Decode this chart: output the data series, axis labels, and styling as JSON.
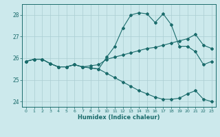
{
  "xlabel": "Humidex (Indice chaleur)",
  "bg_color": "#cce9ec",
  "grid_color": "#aacdd2",
  "line_color": "#1a6b6b",
  "x_data": [
    0,
    1,
    2,
    3,
    4,
    5,
    6,
    7,
    8,
    9,
    10,
    11,
    12,
    13,
    14,
    15,
    16,
    17,
    18,
    19,
    20,
    21,
    22,
    23
  ],
  "curve1": [
    25.85,
    25.95,
    25.95,
    25.75,
    25.6,
    25.6,
    25.7,
    25.6,
    25.55,
    25.5,
    26.05,
    26.55,
    27.4,
    28.0,
    28.1,
    28.05,
    27.65,
    28.05,
    27.55,
    26.55,
    26.55,
    26.3,
    25.7,
    25.85
  ],
  "curve2": [
    25.85,
    25.95,
    25.95,
    25.75,
    25.6,
    25.6,
    25.7,
    25.6,
    25.65,
    25.7,
    25.95,
    26.05,
    26.15,
    26.25,
    26.35,
    26.45,
    26.5,
    26.6,
    26.7,
    26.8,
    26.9,
    27.1,
    26.6,
    26.45
  ],
  "curve3": [
    25.85,
    25.95,
    25.95,
    25.75,
    25.6,
    25.6,
    25.7,
    25.6,
    25.55,
    25.5,
    25.3,
    25.1,
    24.9,
    24.7,
    24.5,
    24.35,
    24.2,
    24.1,
    24.1,
    24.15,
    24.35,
    24.5,
    24.1,
    24.0
  ],
  "ylim": [
    23.75,
    28.5
  ],
  "yticks": [
    24,
    25,
    26,
    27,
    28
  ],
  "xticks": [
    0,
    1,
    2,
    3,
    4,
    5,
    6,
    7,
    8,
    9,
    10,
    11,
    12,
    13,
    14,
    15,
    16,
    17,
    18,
    19,
    20,
    21,
    22,
    23
  ]
}
